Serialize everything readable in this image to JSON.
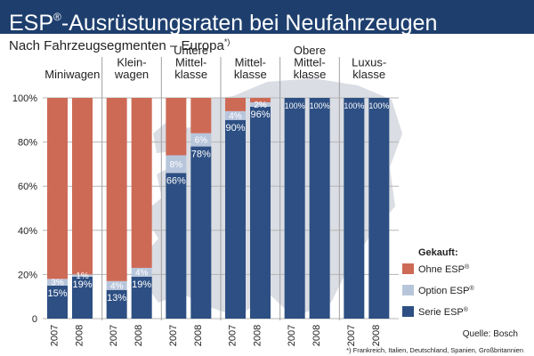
{
  "header": {
    "title_main": "ESP",
    "title_sup": "®",
    "title_rest": "-Ausrüstungsraten bei Neufahrzeugen",
    "subtitle_main": "Nach Fahrzeugsegmenten – Europa",
    "subtitle_sup": "*)"
  },
  "footer": {
    "source": "Quelle: Bosch",
    "footnote": "*) Frankreich, Italien, Deutschland, Spanien, Großbritannien"
  },
  "colors": {
    "ohne": "#cd6a56",
    "option": "#b8c6dc",
    "serie": "#2d4f83",
    "header": "#1e3f6e",
    "map": "#d3d7de"
  },
  "chart_data": {
    "type": "bar",
    "stacked": true,
    "ylim": [
      0,
      100
    ],
    "yticks": [
      "0",
      "20%",
      "40%",
      "60%",
      "80%",
      "100%"
    ],
    "groups": [
      {
        "label_lines": [
          "Miniwagen"
        ],
        "bars": [
          {
            "year": "2007",
            "serie": 15,
            "option": 3,
            "ohne": 82,
            "labels": {
              "serie": "15%",
              "option": "3%"
            }
          },
          {
            "year": "2008",
            "serie": 19,
            "option": 1,
            "ohne": 80,
            "labels": {
              "serie": "19%",
              "option": "1%"
            }
          }
        ]
      },
      {
        "label_lines": [
          "Klein-",
          "wagen"
        ],
        "bars": [
          {
            "year": "2007",
            "serie": 13,
            "option": 4,
            "ohne": 83,
            "labels": {
              "serie": "13%",
              "option": "4%"
            }
          },
          {
            "year": "2008",
            "serie": 19,
            "option": 4,
            "ohne": 77,
            "labels": {
              "serie": "19%",
              "option": "4%"
            }
          }
        ]
      },
      {
        "label_lines": [
          "Untere",
          "Mittel-",
          "klasse"
        ],
        "bars": [
          {
            "year": "2007",
            "serie": 66,
            "option": 8,
            "ohne": 26,
            "labels": {
              "serie": "66%",
              "option": "8%"
            }
          },
          {
            "year": "2008",
            "serie": 78,
            "option": 6,
            "ohne": 16,
            "labels": {
              "serie": "78%",
              "option": "6%"
            }
          }
        ]
      },
      {
        "label_lines": [
          "Mittel-",
          "klasse"
        ],
        "bars": [
          {
            "year": "2007",
            "serie": 90,
            "option": 4,
            "ohne": 6,
            "labels": {
              "serie": "90%",
              "option": "4%"
            }
          },
          {
            "year": "2008",
            "serie": 96,
            "option": 2,
            "ohne": 2,
            "labels": {
              "serie": "96%",
              "option": "2%"
            }
          }
        ]
      },
      {
        "label_lines": [
          "Obere",
          "Mittel-",
          "klasse"
        ],
        "bars": [
          {
            "year": "2007",
            "serie": 100,
            "option": 0,
            "ohne": 0,
            "labels": {
              "serie": "100%"
            }
          },
          {
            "year": "2008",
            "serie": 100,
            "option": 0,
            "ohne": 0,
            "labels": {
              "serie": "100%"
            }
          }
        ]
      },
      {
        "label_lines": [
          "Luxus-",
          "klasse"
        ],
        "bars": [
          {
            "year": "2007",
            "serie": 100,
            "option": 0,
            "ohne": 0,
            "labels": {
              "serie": "100%"
            }
          },
          {
            "year": "2008",
            "serie": 100,
            "option": 0,
            "ohne": 0,
            "labels": {
              "serie": "100%"
            }
          }
        ]
      }
    ],
    "legend": {
      "title": "Gekauft:",
      "placement": "right",
      "items": [
        {
          "key": "ohne",
          "label": "Ohne ESP",
          "sup": "®"
        },
        {
          "key": "option",
          "label": "Option ESP",
          "sup": "®"
        },
        {
          "key": "serie",
          "label": "Serie ESP",
          "sup": "®"
        }
      ]
    }
  }
}
